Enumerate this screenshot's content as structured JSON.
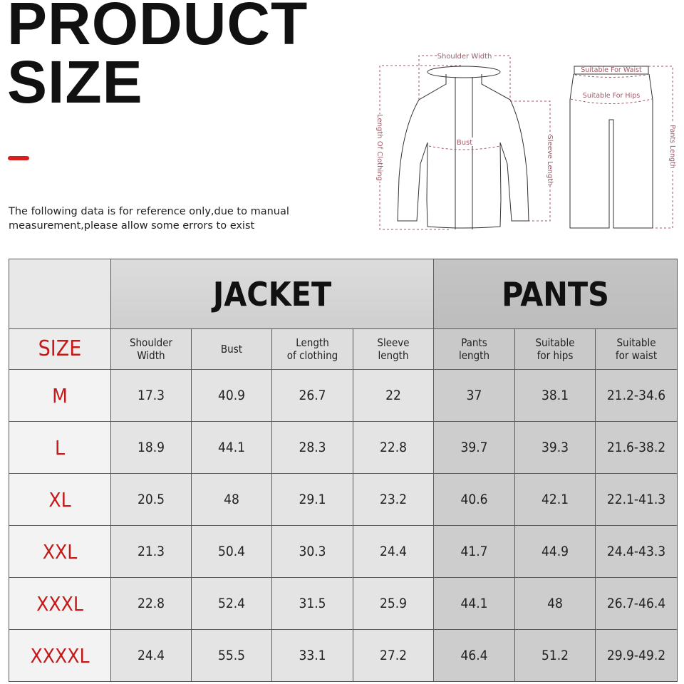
{
  "title": {
    "line1": "PRODUCT",
    "line2": "SIZE"
  },
  "note": {
    "line1": "The following data is for reference only,due to manual",
    "line2": "measurement,please allow some errors to exist"
  },
  "diagram": {
    "shoulder_width": "Shoulder Width",
    "length_of_clothing": "Length Of Clothing",
    "bust": "Bust",
    "sleeve_length": "Sleeve Length",
    "suitable_for_waist": "Suitable For Waist",
    "suitable_for_hips": "Suitable For Hips",
    "pants_length": "Pants Length"
  },
  "colors": {
    "accent": "#d81e1e",
    "size_text": "#c61a1a",
    "diagram_label": "#9b5a66"
  },
  "table": {
    "groups": {
      "jacket": "JACKET",
      "pants": "PANTS"
    },
    "headers": [
      "SIZE",
      "Shoulder|Width",
      "Bust",
      "Length|of clothing",
      "Sleeve|length",
      "Pants|length",
      "Suitable|for hips",
      "Suitable|for waist"
    ],
    "rows": [
      [
        "M",
        "17.3",
        "40.9",
        "26.7",
        "22",
        "37",
        "38.1",
        "21.2-34.6"
      ],
      [
        "L",
        "18.9",
        "44.1",
        "28.3",
        "22.8",
        "39.7",
        "39.3",
        "21.6-38.2"
      ],
      [
        "XL",
        "20.5",
        "48",
        "29.1",
        "23.2",
        "40.6",
        "42.1",
        "22.1-41.3"
      ],
      [
        "XXL",
        "21.3",
        "50.4",
        "30.3",
        "24.4",
        "41.7",
        "44.9",
        "24.4-43.3"
      ],
      [
        "XXXL",
        "22.8",
        "52.4",
        "31.5",
        "25.9",
        "44.1",
        "48",
        "26.7-46.4"
      ],
      [
        "XXXXL",
        "24.4",
        "55.5",
        "33.1",
        "27.2",
        "46.4",
        "51.2",
        "29.9-49.2"
      ]
    ]
  }
}
